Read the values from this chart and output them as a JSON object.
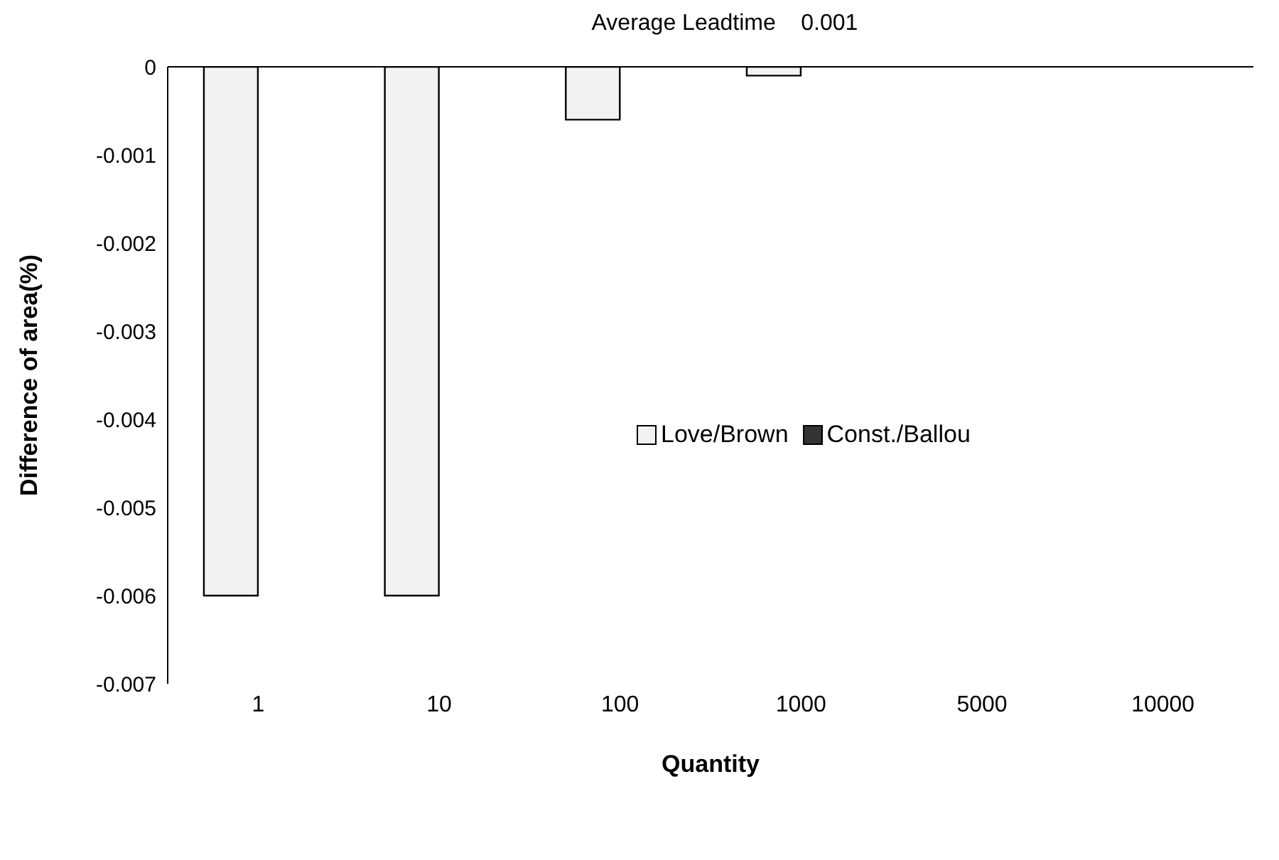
{
  "chart_data": {
    "type": "bar",
    "title": "Average Leadtime    0.001",
    "xlabel": "Quantity",
    "ylabel": "Difference of area(%)",
    "categories": [
      "1",
      "10",
      "100",
      "1000",
      "5000",
      "10000"
    ],
    "series": [
      {
        "name": "Love/Brown",
        "color": "#f2f2f2",
        "values": [
          -0.006,
          -0.006,
          -0.0006,
          -0.0001,
          0,
          0
        ]
      },
      {
        "name": "Const./Ballou",
        "color": "#333333",
        "values": [
          0,
          0,
          0,
          0,
          0,
          0
        ]
      }
    ],
    "ylim": [
      -0.007,
      0
    ],
    "yticks": [
      -0.007,
      -0.006,
      -0.005,
      -0.004,
      -0.003,
      -0.002,
      -0.001,
      0
    ],
    "grid": false,
    "legend": "center"
  }
}
